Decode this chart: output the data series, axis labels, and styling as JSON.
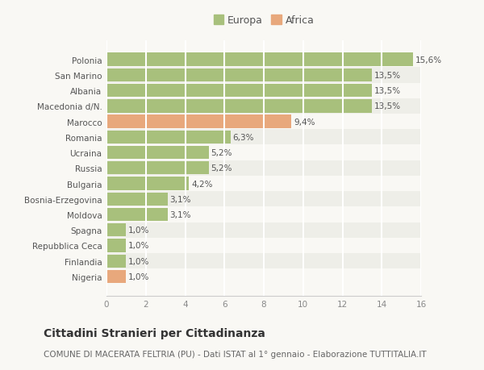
{
  "categories": [
    "Nigeria",
    "Finlandia",
    "Repubblica Ceca",
    "Spagna",
    "Moldova",
    "Bosnia-Erzegovina",
    "Bulgaria",
    "Russia",
    "Ucraina",
    "Romania",
    "Marocco",
    "Macedonia d/N.",
    "Albania",
    "San Marino",
    "Polonia"
  ],
  "values": [
    1.0,
    1.0,
    1.0,
    1.0,
    3.1,
    3.1,
    4.2,
    5.2,
    5.2,
    6.3,
    9.4,
    13.5,
    13.5,
    13.5,
    15.6
  ],
  "colors": [
    "#e8a87c",
    "#a8c07c",
    "#a8c07c",
    "#a8c07c",
    "#a8c07c",
    "#a8c07c",
    "#a8c07c",
    "#a8c07c",
    "#a8c07c",
    "#a8c07c",
    "#e8a87c",
    "#a8c07c",
    "#a8c07c",
    "#a8c07c",
    "#a8c07c"
  ],
  "labels": [
    "1,0%",
    "1,0%",
    "1,0%",
    "1,0%",
    "3,1%",
    "3,1%",
    "4,2%",
    "5,2%",
    "5,2%",
    "6,3%",
    "9,4%",
    "13,5%",
    "13,5%",
    "13,5%",
    "15,6%"
  ],
  "europa_color": "#a8c07c",
  "africa_color": "#e8a87c",
  "xlim": [
    0,
    16
  ],
  "xticks": [
    0,
    2,
    4,
    6,
    8,
    10,
    12,
    14,
    16
  ],
  "title": "Cittadini Stranieri per Cittadinanza",
  "subtitle": "COMUNE DI MACERATA FELTRIA (PU) - Dati ISTAT al 1° gennaio - Elaborazione TUTTITALIA.IT",
  "background_color": "#f9f8f4",
  "grid_color": "#ffffff",
  "bar_height": 0.85,
  "legend_europa": "Europa",
  "legend_africa": "Africa",
  "title_fontsize": 10,
  "subtitle_fontsize": 7.5,
  "label_fontsize": 7.5,
  "tick_fontsize": 7.5,
  "legend_fontsize": 9
}
